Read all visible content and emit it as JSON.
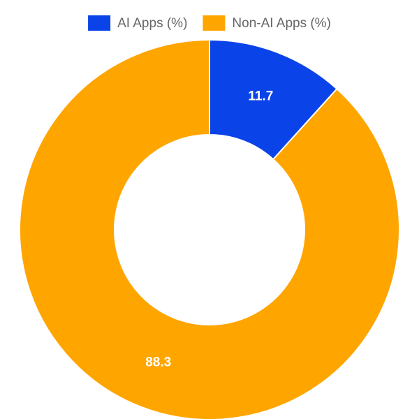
{
  "chart_data": {
    "type": "doughnut",
    "labels": [
      "AI Apps (%)",
      "Non-AI Apps (%)"
    ],
    "values": [
      11.7,
      88.3
    ],
    "colors": [
      "#0a43e8",
      "#ffa500"
    ],
    "legend": "top"
  }
}
